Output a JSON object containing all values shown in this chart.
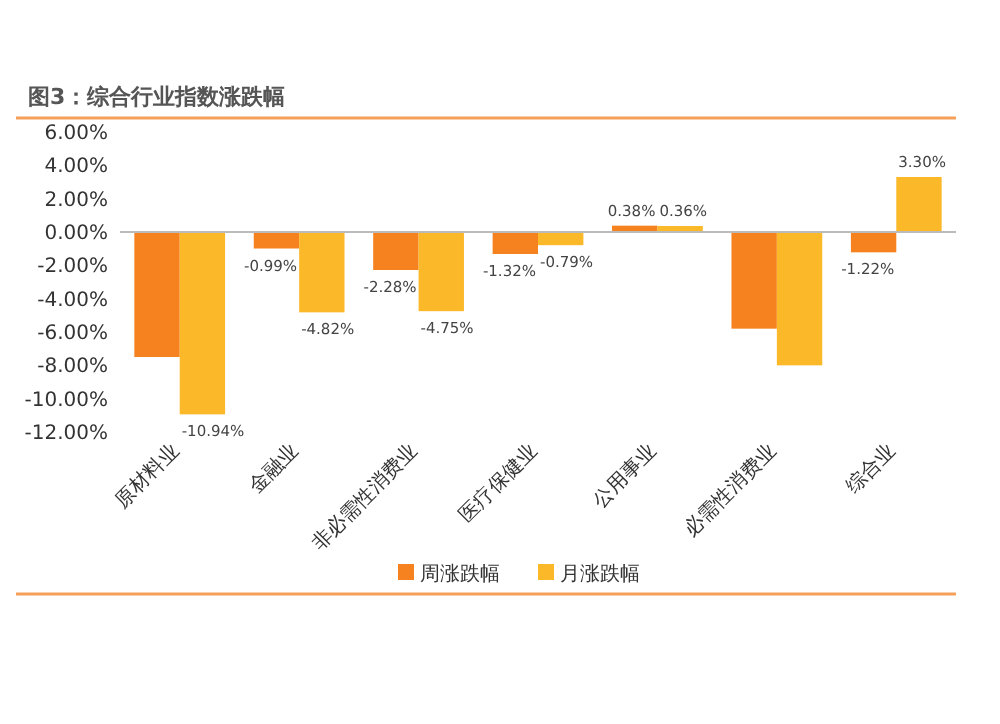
{
  "chart_data": {
    "type": "bar",
    "title": "图3：综合行业指数涨跌幅",
    "categories": [
      "原材料业",
      "金融业",
      "非必需性消费业",
      "医疗保健业",
      "公用事业",
      "必需性消费业",
      "综合业"
    ],
    "series": [
      {
        "name": "周涨跌幅",
        "color": "#f5821f",
        "values": [
          -7.5,
          -0.99,
          -2.28,
          -1.32,
          0.38,
          -5.8,
          -1.22
        ],
        "value_labels": [
          null,
          "-0.99%",
          "-2.28%",
          "-1.32%",
          "0.38%",
          null,
          "-1.22%"
        ]
      },
      {
        "name": "月涨跌幅",
        "color": "#fbb829",
        "values": [
          -10.94,
          -4.82,
          -4.75,
          -0.79,
          0.36,
          -8.0,
          3.3
        ],
        "value_labels": [
          "-10.94%",
          "-4.82%",
          "-4.75%",
          "-0.79%",
          "0.36%",
          null,
          "3.30%"
        ]
      }
    ],
    "ylim": [
      -12,
      6
    ],
    "yticks": [
      {
        "value": 6,
        "label": "6.00%"
      },
      {
        "value": 4,
        "label": "4.00%"
      },
      {
        "value": 2,
        "label": "2.00%"
      },
      {
        "value": 0,
        "label": "0.00%"
      },
      {
        "value": -2,
        "label": "-2.00%"
      },
      {
        "value": -4,
        "label": "-4.00%"
      },
      {
        "value": -6,
        "label": "-6.00%"
      },
      {
        "value": -8,
        "label": "-8.00%"
      },
      {
        "value": -10,
        "label": "-10.00%"
      },
      {
        "value": -12,
        "label": "-12.00%"
      }
    ],
    "legend": "bottom"
  }
}
